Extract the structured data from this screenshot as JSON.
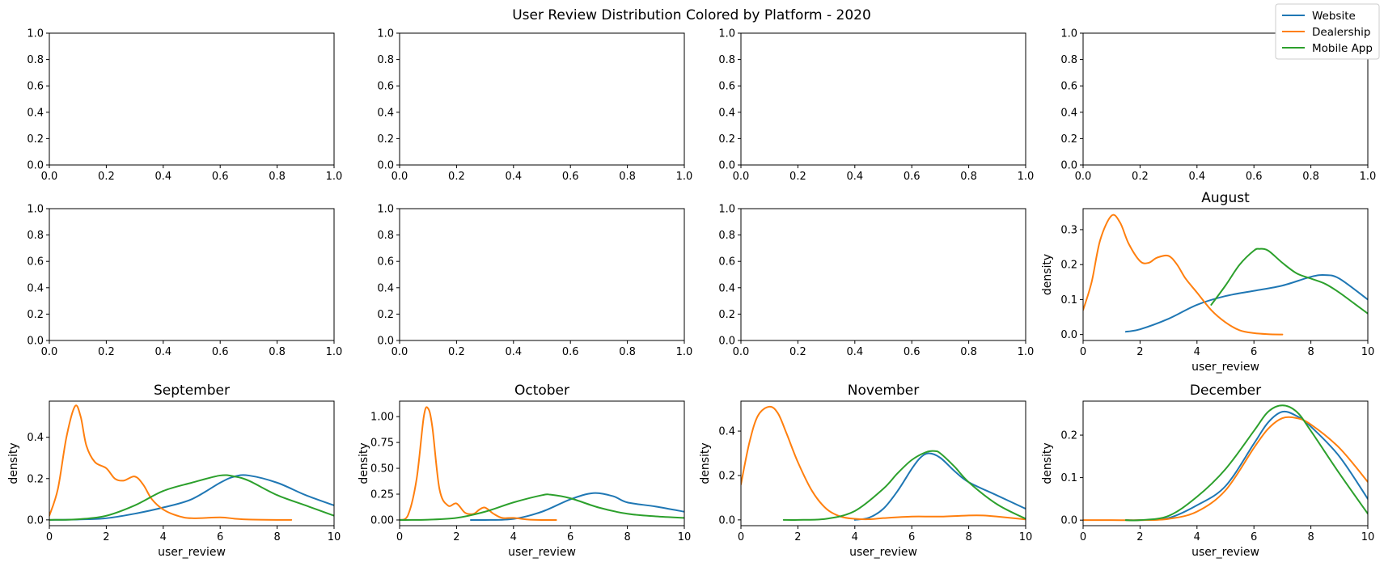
{
  "figure_title": "User Review Distribution Colored by Platform - 2020",
  "legend": {
    "placement": "top-right",
    "entries": [
      {
        "label": "Website",
        "color": "#1f77b4"
      },
      {
        "label": "Dealership",
        "color": "#ff7f0e"
      },
      {
        "label": "Mobile App",
        "color": "#2ca02c"
      }
    ]
  },
  "chart_data": [
    {
      "type": "line",
      "title": "",
      "xlabel": "",
      "ylabel": "",
      "xlim": [
        0,
        1
      ],
      "ylim": [
        0,
        1
      ],
      "xticks": [
        "0.0",
        "0.2",
        "0.4",
        "0.6",
        "0.8",
        "1.0"
      ],
      "yticks": [
        "0.0",
        "0.2",
        "0.4",
        "0.6",
        "0.8",
        "1.0"
      ],
      "series": []
    },
    {
      "type": "line",
      "title": "",
      "xlabel": "",
      "ylabel": "",
      "xlim": [
        0,
        1
      ],
      "ylim": [
        0,
        1
      ],
      "xticks": [
        "0.0",
        "0.2",
        "0.4",
        "0.6",
        "0.8",
        "1.0"
      ],
      "yticks": [
        "0.0",
        "0.2",
        "0.4",
        "0.6",
        "0.8",
        "1.0"
      ],
      "series": []
    },
    {
      "type": "line",
      "title": "",
      "xlabel": "",
      "ylabel": "",
      "xlim": [
        0,
        1
      ],
      "ylim": [
        0,
        1
      ],
      "xticks": [
        "0.0",
        "0.2",
        "0.4",
        "0.6",
        "0.8",
        "1.0"
      ],
      "yticks": [
        "0.0",
        "0.2",
        "0.4",
        "0.6",
        "0.8",
        "1.0"
      ],
      "series": []
    },
    {
      "type": "line",
      "title": "",
      "xlabel": "",
      "ylabel": "",
      "xlim": [
        0,
        1
      ],
      "ylim": [
        0,
        1
      ],
      "xticks": [
        "0.0",
        "0.2",
        "0.4",
        "0.6",
        "0.8",
        "1.0"
      ],
      "yticks": [
        "0.0",
        "0.2",
        "0.4",
        "0.6",
        "0.8",
        "1.0"
      ],
      "series": []
    },
    {
      "type": "line",
      "title": "",
      "xlabel": "",
      "ylabel": "",
      "xlim": [
        0,
        1
      ],
      "ylim": [
        0,
        1
      ],
      "xticks": [
        "0.0",
        "0.2",
        "0.4",
        "0.6",
        "0.8",
        "1.0"
      ],
      "yticks": [
        "0.0",
        "0.2",
        "0.4",
        "0.6",
        "0.8",
        "1.0"
      ],
      "series": []
    },
    {
      "type": "line",
      "title": "",
      "xlabel": "",
      "ylabel": "",
      "xlim": [
        0,
        1
      ],
      "ylim": [
        0,
        1
      ],
      "xticks": [
        "0.0",
        "0.2",
        "0.4",
        "0.6",
        "0.8",
        "1.0"
      ],
      "yticks": [
        "0.0",
        "0.2",
        "0.4",
        "0.6",
        "0.8",
        "1.0"
      ],
      "series": []
    },
    {
      "type": "line",
      "title": "",
      "xlabel": "",
      "ylabel": "",
      "xlim": [
        0,
        1
      ],
      "ylim": [
        0,
        1
      ],
      "xticks": [
        "0.0",
        "0.2",
        "0.4",
        "0.6",
        "0.8",
        "1.0"
      ],
      "yticks": [
        "0.0",
        "0.2",
        "0.4",
        "0.6",
        "0.8",
        "1.0"
      ],
      "series": []
    },
    {
      "type": "line",
      "title": "August",
      "xlabel": "user_review",
      "ylabel": "density",
      "xlim": [
        0,
        10
      ],
      "ylim": [
        -0.017,
        0.36
      ],
      "xticks": [
        "0",
        "2",
        "4",
        "6",
        "8",
        "10"
      ],
      "yticks": [
        "0.0",
        "0.1",
        "0.2",
        "0.3"
      ],
      "series": [
        {
          "name": "Website",
          "x": [
            1.5,
            2,
            3,
            4,
            5,
            6,
            7,
            8,
            8.5,
            9,
            10
          ],
          "y": [
            0.008,
            0.015,
            0.045,
            0.085,
            0.11,
            0.125,
            0.14,
            0.165,
            0.17,
            0.16,
            0.1
          ]
        },
        {
          "name": "Dealership",
          "x": [
            0,
            0.3,
            0.6,
            1,
            1.3,
            1.6,
            2,
            2.3,
            2.6,
            3,
            3.3,
            3.6,
            4,
            4.5,
            5,
            5.5,
            6,
            6.5,
            7
          ],
          "y": [
            0.07,
            0.15,
            0.27,
            0.34,
            0.32,
            0.26,
            0.21,
            0.205,
            0.22,
            0.225,
            0.2,
            0.16,
            0.12,
            0.07,
            0.035,
            0.012,
            0.004,
            0.001,
            0
          ]
        },
        {
          "name": "Mobile App",
          "x": [
            4.5,
            5,
            5.5,
            6,
            6.2,
            6.5,
            7,
            7.5,
            8,
            8.5,
            9,
            9.5,
            10
          ],
          "y": [
            0.085,
            0.14,
            0.2,
            0.24,
            0.245,
            0.24,
            0.205,
            0.175,
            0.16,
            0.145,
            0.12,
            0.09,
            0.06
          ]
        }
      ]
    },
    {
      "type": "line",
      "title": "September",
      "xlabel": "user_review",
      "ylabel": "density",
      "xlim": [
        0,
        10
      ],
      "ylim": [
        -0.028,
        0.575
      ],
      "xticks": [
        "0",
        "2",
        "4",
        "6",
        "8",
        "10"
      ],
      "yticks": [
        "0.0",
        "0.2",
        "0.4"
      ],
      "series": [
        {
          "name": "Website",
          "x": [
            0,
            1,
            2,
            3,
            4,
            5,
            6,
            6.5,
            7,
            8,
            9,
            10
          ],
          "y": [
            0,
            0.002,
            0.008,
            0.03,
            0.06,
            0.1,
            0.18,
            0.21,
            0.215,
            0.18,
            0.12,
            0.07
          ]
        },
        {
          "name": "Dealership",
          "x": [
            0,
            0.3,
            0.6,
            0.9,
            1.1,
            1.3,
            1.6,
            2,
            2.3,
            2.6,
            3,
            3.3,
            3.6,
            4,
            4.5,
            5,
            6,
            6.5,
            7,
            8,
            8.5
          ],
          "y": [
            0.02,
            0.15,
            0.4,
            0.55,
            0.5,
            0.36,
            0.28,
            0.25,
            0.2,
            0.19,
            0.21,
            0.17,
            0.1,
            0.05,
            0.02,
            0.008,
            0.012,
            0.006,
            0.002,
            0,
            0
          ]
        },
        {
          "name": "Mobile App",
          "x": [
            0,
            1,
            2,
            3,
            4,
            5,
            6,
            6.5,
            7,
            8,
            9,
            10
          ],
          "y": [
            0,
            0.003,
            0.02,
            0.07,
            0.14,
            0.18,
            0.215,
            0.21,
            0.19,
            0.12,
            0.07,
            0.02
          ]
        }
      ]
    },
    {
      "type": "line",
      "title": "October",
      "xlabel": "user_review",
      "ylabel": "density",
      "xlim": [
        0,
        10
      ],
      "ylim": [
        -0.055,
        1.15
      ],
      "xticks": [
        "0",
        "2",
        "4",
        "6",
        "8",
        "10"
      ],
      "yticks": [
        "0.00",
        "0.25",
        "0.50",
        "0.75",
        "1.00"
      ],
      "series": [
        {
          "name": "Website",
          "x": [
            2.5,
            3,
            4,
            5,
            6,
            6.8,
            7.5,
            8,
            9,
            10
          ],
          "y": [
            0,
            0,
            0.01,
            0.08,
            0.2,
            0.26,
            0.23,
            0.17,
            0.13,
            0.08
          ]
        },
        {
          "name": "Dealership",
          "x": [
            0,
            0.3,
            0.6,
            0.85,
            1,
            1.15,
            1.4,
            1.7,
            2,
            2.3,
            2.6,
            2.8,
            3,
            3.3,
            3.6,
            4,
            4.5,
            5,
            5.5
          ],
          "y": [
            0,
            0.05,
            0.4,
            1.0,
            1.08,
            0.9,
            0.3,
            0.14,
            0.16,
            0.07,
            0.06,
            0.1,
            0.12,
            0.06,
            0.02,
            0.02,
            0.005,
            0,
            0
          ]
        },
        {
          "name": "Mobile App",
          "x": [
            0,
            1,
            2,
            3,
            4,
            5,
            5.3,
            6,
            7,
            8,
            9,
            10
          ],
          "y": [
            0,
            0.003,
            0.02,
            0.08,
            0.17,
            0.24,
            0.245,
            0.21,
            0.12,
            0.06,
            0.035,
            0.02
          ]
        }
      ]
    },
    {
      "type": "line",
      "title": "November",
      "xlabel": "user_review",
      "ylabel": "density",
      "xlim": [
        0,
        10
      ],
      "ylim": [
        -0.026,
        0.535
      ],
      "xticks": [
        "0",
        "2",
        "4",
        "6",
        "8",
        "10"
      ],
      "yticks": [
        "0.0",
        "0.2",
        "0.4"
      ],
      "series": [
        {
          "name": "Website",
          "x": [
            4,
            4.5,
            5,
            5.5,
            6,
            6.3,
            6.6,
            7,
            7.5,
            8,
            9,
            10
          ],
          "y": [
            0,
            0.01,
            0.05,
            0.13,
            0.23,
            0.28,
            0.3,
            0.28,
            0.22,
            0.17,
            0.11,
            0.05
          ]
        },
        {
          "name": "Dealership",
          "x": [
            0,
            0.3,
            0.6,
            1,
            1.3,
            1.6,
            2,
            2.5,
            3,
            3.5,
            4,
            4.5,
            5,
            6,
            7,
            8,
            8.5,
            9,
            10
          ],
          "y": [
            0.16,
            0.35,
            0.47,
            0.51,
            0.48,
            0.39,
            0.26,
            0.13,
            0.05,
            0.015,
            0.005,
            0.003,
            0.008,
            0.015,
            0.015,
            0.02,
            0.02,
            0.015,
            0.002
          ]
        },
        {
          "name": "Mobile App",
          "x": [
            1.5,
            2,
            3,
            4,
            5,
            5.5,
            6,
            6.5,
            6.8,
            7,
            7.5,
            8,
            9,
            10
          ],
          "y": [
            0,
            0,
            0.005,
            0.04,
            0.14,
            0.21,
            0.27,
            0.305,
            0.31,
            0.3,
            0.24,
            0.17,
            0.07,
            0.005
          ]
        }
      ]
    },
    {
      "type": "line",
      "title": "December",
      "xlabel": "user_review",
      "ylabel": "density",
      "xlim": [
        0,
        10
      ],
      "ylim": [
        -0.013,
        0.28
      ],
      "xticks": [
        "0",
        "2",
        "4",
        "6",
        "8",
        "10"
      ],
      "yticks": [
        "0.0",
        "0.1",
        "0.2"
      ],
      "series": [
        {
          "name": "Website",
          "x": [
            1.5,
            2,
            3,
            4,
            5,
            6,
            6.5,
            7,
            7.5,
            8,
            9,
            10
          ],
          "y": [
            0,
            0,
            0.005,
            0.035,
            0.08,
            0.18,
            0.23,
            0.255,
            0.245,
            0.22,
            0.15,
            0.05
          ]
        },
        {
          "name": "Dealership",
          "x": [
            0,
            1,
            2,
            3,
            4,
            5,
            6,
            6.5,
            7,
            7.5,
            8,
            9,
            10
          ],
          "y": [
            0,
            0,
            0,
            0.003,
            0.02,
            0.07,
            0.17,
            0.215,
            0.24,
            0.24,
            0.225,
            0.17,
            0.09
          ]
        },
        {
          "name": "Mobile App",
          "x": [
            1.5,
            2,
            3,
            4,
            5,
            6,
            6.5,
            7,
            7.5,
            8,
            9,
            10
          ],
          "y": [
            0,
            0,
            0.01,
            0.055,
            0.12,
            0.21,
            0.255,
            0.27,
            0.255,
            0.21,
            0.11,
            0.015
          ]
        }
      ]
    }
  ]
}
